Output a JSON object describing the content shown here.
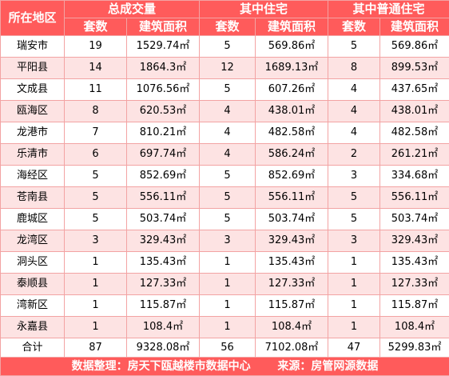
{
  "header": {
    "region": "所在地区",
    "group_total": "总成交量",
    "group_residential": "其中住宅",
    "group_ordinary": "其中普通住宅",
    "sets": "套数",
    "area": "建筑面积"
  },
  "rows": [
    {
      "region": "瑞安市",
      "total_sets": "19",
      "total_area": "1529.74㎡",
      "res_sets": "5",
      "res_area": "569.86㎡",
      "ord_sets": "5",
      "ord_area": "569.86㎡"
    },
    {
      "region": "平阳县",
      "total_sets": "14",
      "total_area": "1864.3㎡",
      "res_sets": "12",
      "res_area": "1689.13㎡",
      "ord_sets": "8",
      "ord_area": "899.53㎡"
    },
    {
      "region": "文成县",
      "total_sets": "11",
      "total_area": "1076.56㎡",
      "res_sets": "5",
      "res_area": "607.26㎡",
      "ord_sets": "4",
      "ord_area": "437.65㎡"
    },
    {
      "region": "瓯海区",
      "total_sets": "8",
      "total_area": "620.53㎡",
      "res_sets": "4",
      "res_area": "438.01㎡",
      "ord_sets": "4",
      "ord_area": "438.01㎡"
    },
    {
      "region": "龙港市",
      "total_sets": "7",
      "total_area": "810.21㎡",
      "res_sets": "4",
      "res_area": "482.58㎡",
      "ord_sets": "4",
      "ord_area": "482.58㎡"
    },
    {
      "region": "乐清市",
      "total_sets": "6",
      "total_area": "697.74㎡",
      "res_sets": "4",
      "res_area": "586.24㎡",
      "ord_sets": "2",
      "ord_area": "261.21㎡"
    },
    {
      "region": "海经区",
      "total_sets": "5",
      "total_area": "852.69㎡",
      "res_sets": "5",
      "res_area": "852.69㎡",
      "ord_sets": "3",
      "ord_area": "334.68㎡"
    },
    {
      "region": "苍南县",
      "total_sets": "5",
      "total_area": "556.11㎡",
      "res_sets": "5",
      "res_area": "556.11㎡",
      "ord_sets": "5",
      "ord_area": "556.11㎡"
    },
    {
      "region": "鹿城区",
      "total_sets": "5",
      "total_area": "503.74㎡",
      "res_sets": "5",
      "res_area": "503.74㎡",
      "ord_sets": "5",
      "ord_area": "503.74㎡"
    },
    {
      "region": "龙湾区",
      "total_sets": "3",
      "total_area": "329.43㎡",
      "res_sets": "3",
      "res_area": "329.43㎡",
      "ord_sets": "3",
      "ord_area": "329.43㎡"
    },
    {
      "region": "洞头区",
      "total_sets": "1",
      "total_area": "135.43㎡",
      "res_sets": "1",
      "res_area": "135.43㎡",
      "ord_sets": "1",
      "ord_area": "135.43㎡"
    },
    {
      "region": "泰顺县",
      "total_sets": "1",
      "total_area": "127.33㎡",
      "res_sets": "1",
      "res_area": "127.33㎡",
      "ord_sets": "1",
      "ord_area": "127.33㎡"
    },
    {
      "region": "湾新区",
      "total_sets": "1",
      "total_area": "115.87㎡",
      "res_sets": "1",
      "res_area": "115.87㎡",
      "ord_sets": "1",
      "ord_area": "115.87㎡"
    },
    {
      "region": "永嘉县",
      "total_sets": "1",
      "total_area": "108.4㎡",
      "res_sets": "1",
      "res_area": "108.4㎡",
      "ord_sets": "1",
      "ord_area": "108.4㎡"
    }
  ],
  "total": {
    "region": "合计",
    "total_sets": "87",
    "total_area": "9328.08㎡",
    "res_sets": "56",
    "res_area": "7102.08㎡",
    "ord_sets": "47",
    "ord_area": "5299.83㎡"
  },
  "footer": {
    "data_by": "数据整理：房天下瓯越楼市数据中心",
    "source": "来源：房管网源数据"
  },
  "colors": {
    "header_bg": "#ff5b5b",
    "stripe_bg": "#fde3e3",
    "border": "#f3a3a3"
  }
}
